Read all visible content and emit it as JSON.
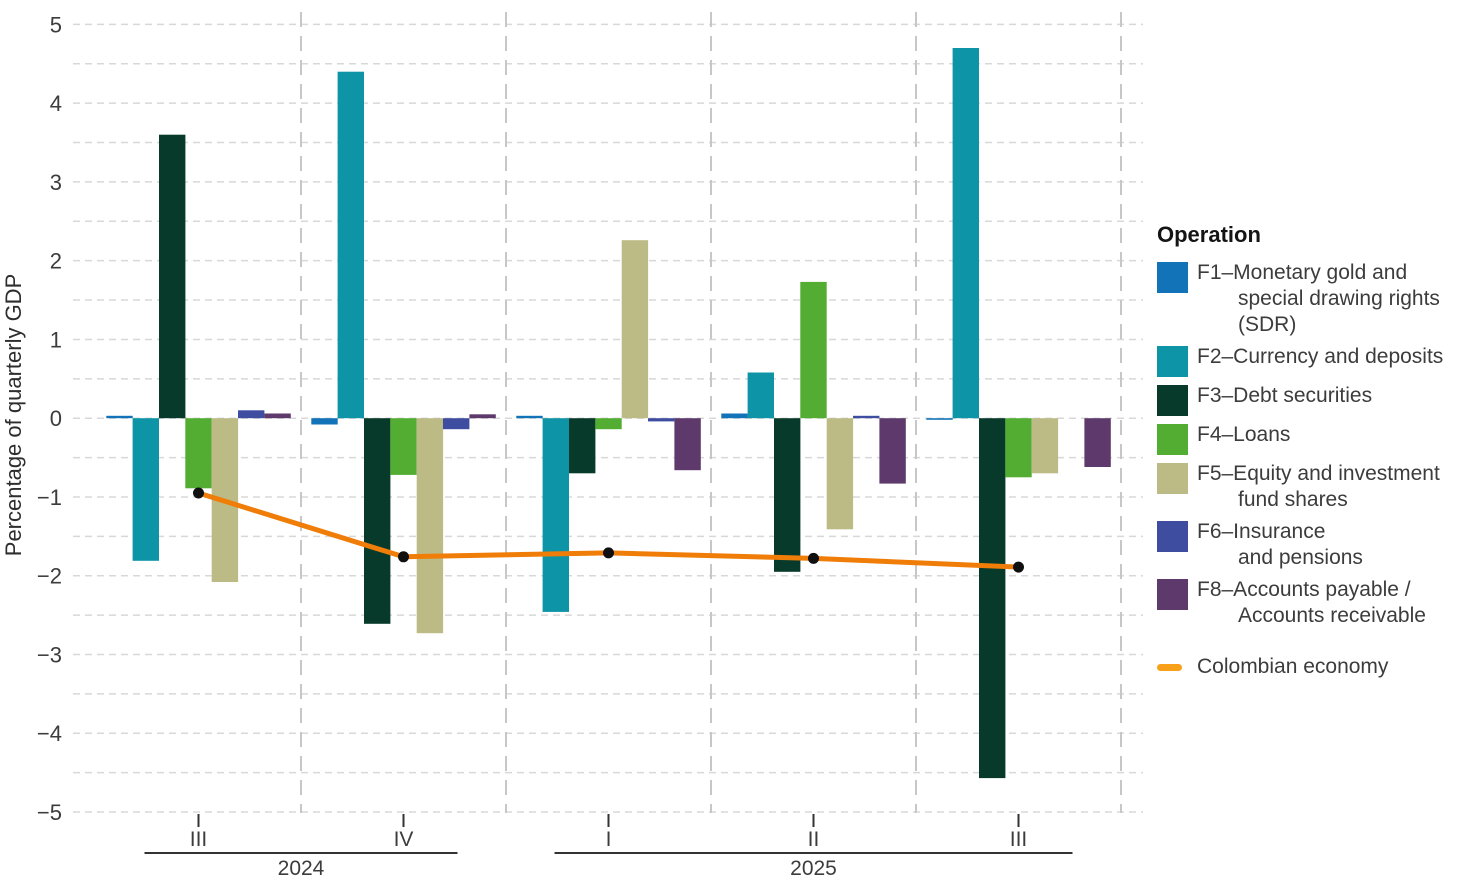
{
  "chart_data": {
    "type": "bar",
    "title": "",
    "xlabel": "",
    "ylabel": "Percentage of quarterly GDP",
    "ylim": [
      -5,
      5
    ],
    "y_ticks": [
      5,
      4,
      3,
      2,
      1,
      0,
      -1,
      -2,
      -3,
      -4,
      -5
    ],
    "grid_minor_step": 0.5,
    "grid_on": true,
    "legend_position": "right",
    "categories": [
      "III",
      "IV",
      "I",
      "II",
      "III"
    ],
    "year_groups": [
      {
        "label": "2024",
        "from": 0,
        "to": 1
      },
      {
        "label": "2025",
        "from": 2,
        "to": 4
      }
    ],
    "series": [
      {
        "code": "F1",
        "name": "F1–Monetary gold and special drawing rights (SDR)",
        "color": "#1273b8",
        "values": [
          0.03,
          -0.08,
          0.03,
          0.06,
          -0.02
        ]
      },
      {
        "code": "F2",
        "name": "F2–Currency and deposits",
        "color": "#0d94a6",
        "values": [
          -1.81,
          4.4,
          -2.46,
          0.58,
          4.7
        ]
      },
      {
        "code": "F3",
        "name": "F3–Debt securities",
        "color": "#073a2a",
        "values": [
          3.6,
          -2.61,
          -0.7,
          -1.95,
          -4.57
        ]
      },
      {
        "code": "F4",
        "name": "F4–Loans",
        "color": "#54ad33",
        "values": [
          -0.89,
          -0.72,
          -0.14,
          1.73,
          -0.75
        ]
      },
      {
        "code": "F5",
        "name": "F5–Equity and investment fund shares",
        "color": "#bcba85",
        "values": [
          -2.08,
          -2.73,
          2.26,
          -1.41,
          -0.7
        ]
      },
      {
        "code": "F6",
        "name": "F6–Insurance and pensions",
        "color": "#3e4da0",
        "values": [
          0.1,
          -0.14,
          -0.04,
          0.03,
          0.0
        ]
      },
      {
        "code": "F8",
        "name": "F8–Accounts payable / Accounts receivable",
        "color": "#5d3a6b",
        "values": [
          0.06,
          0.05,
          -0.66,
          -0.83,
          -0.62
        ]
      }
    ],
    "line_series": {
      "name": "Colombian economy",
      "color": "#ef7d08",
      "point_color": "#101010",
      "values": [
        -0.95,
        -1.76,
        -1.71,
        -1.78,
        -1.89
      ]
    }
  },
  "legend": {
    "title": "Operation",
    "items": [
      {
        "code": "F1",
        "color": "#1273b8",
        "label_lines": [
          "F1–Monetary gold and",
          "special drawing rights",
          "(SDR)"
        ]
      },
      {
        "code": "F2",
        "color": "#0d94a6",
        "label_lines": [
          "F2–Currency and deposits"
        ]
      },
      {
        "code": "F3",
        "color": "#073a2a",
        "label_lines": [
          "F3–Debt securities"
        ]
      },
      {
        "code": "F4",
        "color": "#54ad33",
        "label_lines": [
          "F4–Loans"
        ]
      },
      {
        "code": "F5",
        "color": "#bcba85",
        "label_lines": [
          "F5–Equity and investment",
          "fund shares"
        ]
      },
      {
        "code": "F6",
        "color": "#3e4da0",
        "label_lines": [
          "F6–Insurance",
          "and pensions"
        ]
      },
      {
        "code": "F8",
        "color": "#5d3a6b",
        "label_lines": [
          "F8–Accounts payable /",
          "Accounts receivable"
        ]
      }
    ],
    "line_item": {
      "label": "Colombian economy",
      "color": "#f9a01b"
    }
  }
}
